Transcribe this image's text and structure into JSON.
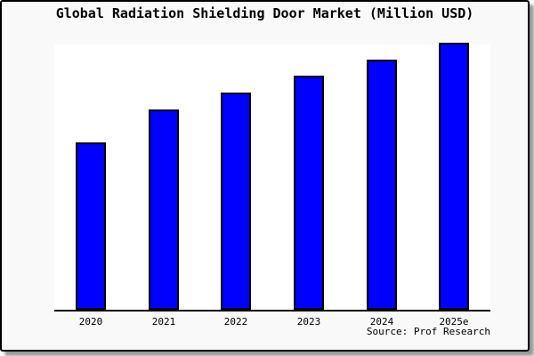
{
  "window": {
    "background_color": "#f9f9f9",
    "frame_border_color": "#000000",
    "plot_background_color": "#ffffff"
  },
  "chart_data": {
    "type": "bar",
    "title": "Global Radiation Shielding Door Market (Million USD)",
    "categories": [
      "2020",
      "2021",
      "2022",
      "2023",
      "2024",
      "2025e"
    ],
    "values": [
      188,
      225,
      244,
      263,
      281,
      300
    ],
    "value_note": "y-axis has no tick labels; values are relative units estimated from bar heights, max bar = 300",
    "xlabel": "",
    "ylabel": "",
    "ylim": [
      0,
      300
    ],
    "grid": false,
    "legend": "none",
    "bar_color": "#0000ff",
    "bar_border_color": "#000000",
    "source_label": "Source: Prof Research"
  }
}
